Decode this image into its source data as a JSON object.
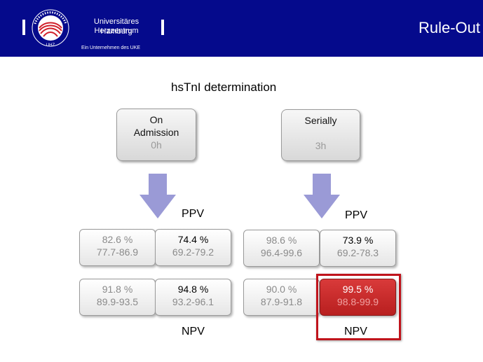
{
  "header": {
    "title": "Rule-Out",
    "logo": {
      "line1": "Universitäres Herzzentrum",
      "line2": "Hamburg",
      "sub": "Ein Unternehmen des UKE",
      "seal_text": "UHZ"
    },
    "background_color": "#050a8c"
  },
  "subtitle": "hsTnI determination",
  "panels": {
    "left": {
      "box": {
        "line1": "On",
        "line2": "Admission",
        "time": "0h"
      },
      "ppv_label": "PPV",
      "npv_label": "NPV",
      "cells": [
        {
          "value": "82.6 %",
          "range": "77.7-86.9"
        },
        {
          "value": "74.4 %",
          "range": "69.2-79.2"
        },
        {
          "value": "91.8 %",
          "range": "89.9-93.5"
        },
        {
          "value": "94.8 %",
          "range": "93.2-96.1"
        }
      ]
    },
    "right": {
      "box": {
        "line1": "Serially",
        "time": "3h"
      },
      "ppv_label": "PPV",
      "npv_label": "NPV",
      "cells": [
        {
          "value": "98.6 %",
          "range": "96.4-99.6"
        },
        {
          "value": "73.9 %",
          "range": "69.2-78.3"
        },
        {
          "value": "90.0 %",
          "range": "87.9-91.8"
        },
        {
          "value": "99.5 %",
          "range": "98.8-99.9"
        }
      ]
    }
  },
  "colors": {
    "arrow": "#9a9ad6",
    "highlight": "#c0141c",
    "highlight_cell": "#c42a2a"
  }
}
